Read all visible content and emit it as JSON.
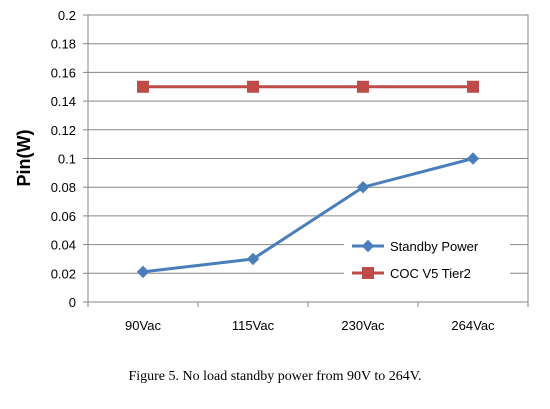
{
  "chart_data": {
    "type": "line",
    "categories": [
      "90Vac",
      "115Vac",
      "230Vac",
      "264Vac"
    ],
    "ylabel": "Pin(W)",
    "xlabel": "",
    "ylim": [
      0,
      0.2
    ],
    "y_tick_step": 0.02,
    "grid": true,
    "legend_placement": "bottom-right",
    "series": [
      {
        "name": "Standby Power",
        "values": [
          0.021,
          0.03,
          0.08,
          0.1
        ],
        "color": "#4a7ebb",
        "marker": "diamond"
      },
      {
        "name": "COC V5 Tier2",
        "values": [
          0.15,
          0.15,
          0.15,
          0.15
        ],
        "color": "#be4b48",
        "marker": "square"
      }
    ]
  },
  "caption": "Figure 5. No load standby power from 90V to 264V."
}
